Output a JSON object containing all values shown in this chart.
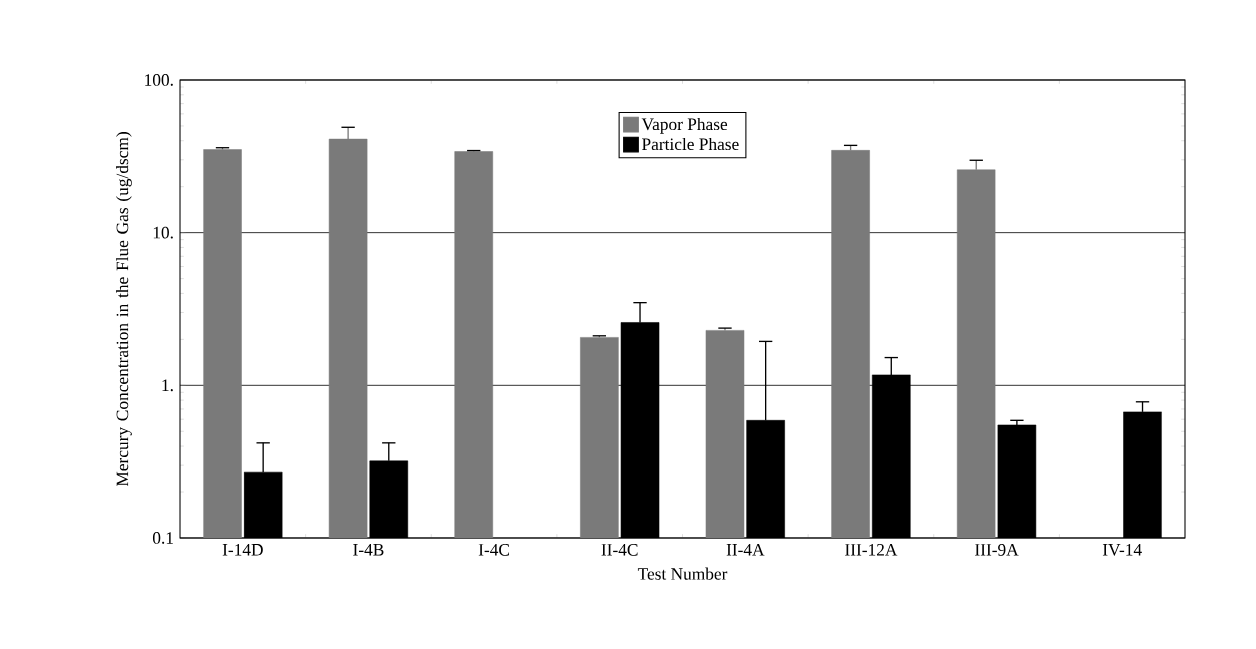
{
  "chart_data": {
    "type": "bar",
    "xlabel": "Test Number",
    "ylabel": "Mercury Concentration in the Flue Gas (ug/dscm)",
    "categories": [
      "I-14D",
      "I-4B",
      "I-4C",
      "II-4C",
      "II-4A",
      "III-12A",
      "III-9A",
      "IV-14"
    ],
    "series": [
      {
        "name": "Vapor Phase",
        "color": "#7a7a7a",
        "values": [
          35,
          41,
          34,
          2.06,
          2.29,
          34.6,
          25.8,
          null
        ],
        "errors": [
          1,
          8,
          0.5,
          0.05,
          0.08,
          2.7,
          4,
          null
        ]
      },
      {
        "name": "Particle Phase",
        "color": "#000000",
        "values": [
          0.27,
          0.32,
          null,
          2.58,
          0.59,
          1.17,
          0.55,
          0.67
        ],
        "errors": [
          0.15,
          0.1,
          null,
          0.9,
          1.35,
          0.35,
          0.04,
          0.11
        ]
      }
    ],
    "log": "y",
    "ylim": [
      0.1,
      100
    ],
    "yticks": [
      {
        "value": 0.1,
        "label": "0.1"
      },
      {
        "value": 1,
        "label": "1."
      },
      {
        "value": 10,
        "label": "10."
      },
      {
        "value": 100,
        "label": "100."
      }
    ],
    "grid": "y",
    "legend": "top"
  }
}
